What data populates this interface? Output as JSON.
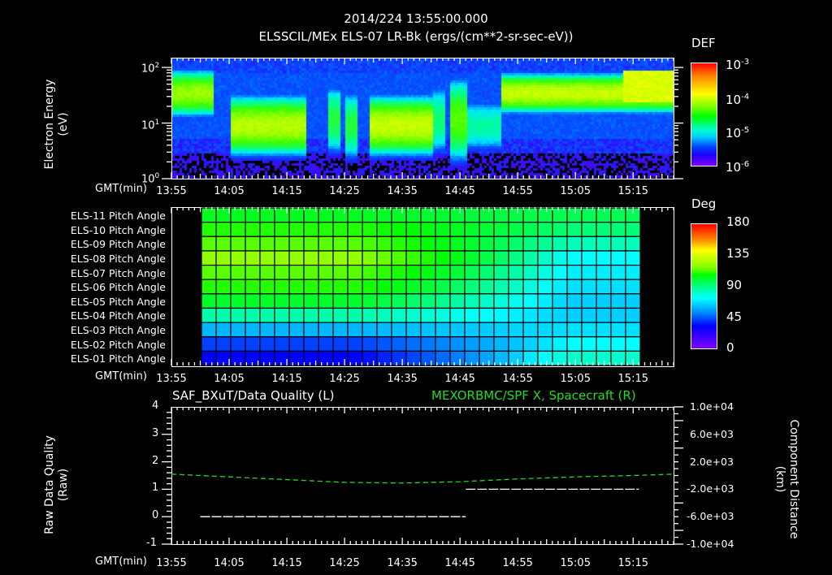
{
  "header": {
    "datetime": "2014/224 13:55:00.000",
    "subtitle": "ELSSCIL/MEx ELS-07 LR-Bk  (ergs/(cm**2-sr-sec-eV))"
  },
  "panel1": {
    "ylabel_line1": "Electron Energy",
    "ylabel_line2": "(eV)",
    "yticks": [
      {
        "base": "10",
        "exp": "2"
      },
      {
        "base": "10",
        "exp": "1"
      },
      {
        "base": "10",
        "exp": "0"
      }
    ],
    "xaxis_label": "GMT(min)",
    "colorbar": {
      "title": "DEF",
      "ticks": [
        {
          "base": "10",
          "exp": "-3"
        },
        {
          "base": "10",
          "exp": "-4"
        },
        {
          "base": "10",
          "exp": "-5"
        },
        {
          "base": "10",
          "exp": "-6"
        }
      ]
    }
  },
  "panel2": {
    "row_labels": [
      "ELS-11 Pitch Angle",
      "ELS-10 Pitch Angle",
      "ELS-09 Pitch Angle",
      "ELS-08 Pitch Angle",
      "ELS-07 Pitch Angle",
      "ELS-06 Pitch Angle",
      "ELS-05 Pitch Angle",
      "ELS-04 Pitch Angle",
      "ELS-03 Pitch Angle",
      "ELS-02 Pitch Angle",
      "ELS-01 Pitch Angle"
    ],
    "xaxis_label": "GMT(min)",
    "colorbar": {
      "title": "Deg",
      "ticks": [
        "180",
        "135",
        "90",
        "45",
        "0"
      ]
    }
  },
  "panel3": {
    "left_title": "SAF_BXuT/Data Quality (L)",
    "right_title": "MEXORBMC/SPF X, Spacecraft (R)",
    "ylabel_line1": "Raw Data Quality",
    "ylabel_line2": "(Raw)",
    "yticks_left": [
      "4",
      "3",
      "2",
      "1",
      "0",
      "-1"
    ],
    "yticks_right": [
      "1.0e+04",
      "6.0e+03",
      "2.0e+03",
      "-2.0e+03",
      "-6.0e+03",
      "-1.0e+04"
    ],
    "ylabel_right_line1": "Component Distance",
    "ylabel_right_line2": "(km)",
    "xaxis_label": "GMT(min)",
    "right_title_color": "#22dd22"
  },
  "xticks": [
    "13:55",
    "14:05",
    "14:15",
    "14:25",
    "14:35",
    "14:45",
    "14:55",
    "15:05",
    "15:15"
  ],
  "chart_data": [
    {
      "type": "heatmap",
      "title": "ELSSCIL/MEx ELS-07 LR-Bk (ergs/(cm**2-sr-sec-eV))",
      "subtitle": "2014/224 13:55:00.000",
      "xlabel": "GMT(min)",
      "ylabel": "Electron Energy (eV)",
      "yscale": "log",
      "ylim": [
        1,
        150
      ],
      "xlim": [
        "13:55",
        "15:22"
      ],
      "x_ticks": [
        "13:55",
        "14:05",
        "14:15",
        "14:25",
        "14:35",
        "14:45",
        "14:55",
        "15:05",
        "15:15"
      ],
      "colorbar": {
        "label": "DEF",
        "scale": "log",
        "range": [
          1e-06,
          0.001
        ]
      },
      "features": [
        {
          "time": "13:55-14:00",
          "energy_eV": "20-50",
          "level": "~1e-4"
        },
        {
          "time": "14:04-14:16",
          "energy_eV": "5-20",
          "level": "~1e-4"
        },
        {
          "time": "14:23-14:26",
          "energy_eV": "5-20",
          "level": "~5e-5"
        },
        {
          "time": "14:29-14:40",
          "energy_eV": "5-20",
          "level": "~1e-4"
        },
        {
          "time": "14:50-14:52",
          "energy_eV": "5-50",
          "level": "~5e-5"
        },
        {
          "time": "14:55-15:22",
          "energy_eV": "20-60",
          "level": "~1e-4 to 3e-4"
        }
      ]
    },
    {
      "type": "heatmap",
      "title": "Pitch Angle",
      "xlabel": "GMT(min)",
      "rows": [
        "ELS-11",
        "ELS-10",
        "ELS-09",
        "ELS-08",
        "ELS-07",
        "ELS-06",
        "ELS-05",
        "ELS-04",
        "ELS-03",
        "ELS-02",
        "ELS-01"
      ],
      "colorbar": {
        "label": "Deg",
        "range": [
          0,
          180
        ],
        "ticks": [
          0,
          45,
          90,
          135,
          180
        ]
      },
      "data_time_range": [
        "14:00",
        "15:16"
      ],
      "columns": 30,
      "approx_values_start": [
        100,
        110,
        118,
        128,
        118,
        110,
        98,
        82,
        62,
        42,
        30
      ],
      "approx_values_end": [
        92,
        88,
        80,
        72,
        70,
        68,
        66,
        66,
        68,
        72,
        78
      ]
    },
    {
      "type": "line",
      "title": "SAF_BXuT/Data Quality (L) / MEXORBMC/SPF X, Spacecraft (R)",
      "xlabel": "GMT(min)",
      "ylabel": "Raw Data Quality (Raw)",
      "ylabel_right": "Component Distance (km)",
      "ylim": [
        -1,
        4
      ],
      "ylim_right": [
        -10000,
        10000
      ],
      "series": [
        {
          "name": "SAF_BXuT/Data Quality",
          "axis": "left",
          "color": "#ffffff",
          "x": [
            "14:00",
            "14:46",
            "14:46",
            "15:16"
          ],
          "y": [
            0,
            0,
            1,
            1
          ]
        },
        {
          "name": "MEXORBMC/SPF X, Spacecraft",
          "axis": "right",
          "color": "#22dd22",
          "style": "dashed",
          "x": [
            "13:55",
            "14:05",
            "14:15",
            "14:25",
            "14:35",
            "14:45",
            "14:55",
            "15:05",
            "15:15",
            "15:22"
          ],
          "y": [
            200,
            -200,
            -600,
            -1000,
            -1100,
            -900,
            -500,
            -200,
            0,
            200
          ]
        }
      ]
    }
  ]
}
